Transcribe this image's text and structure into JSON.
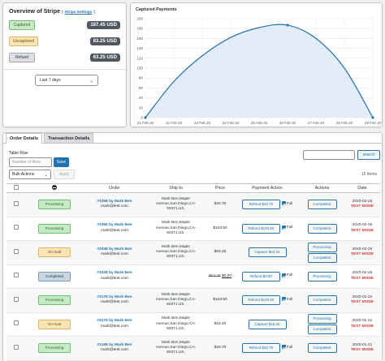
{
  "overview": {
    "title": "Overview of Stripe",
    "sep_left": "|",
    "settings_link": "Stripe Settings",
    "sep_right": "|",
    "rows": [
      {
        "label": "Captured",
        "amount": "187.45 USD"
      },
      {
        "label": "Uncaptured",
        "amount": "83.25 USD"
      },
      {
        "label": "Refund",
        "amount": "63.25 USD"
      }
    ],
    "period": "Last 7 days"
  },
  "chart": {
    "title": "Captured Payments"
  },
  "chart_data": {
    "type": "area",
    "title": "Captured Payments",
    "categories": [
      "21 Feb 20",
      "22 Feb 20",
      "23 Feb 20",
      "24 Feb 20",
      "25 Feb 20",
      "26 Feb 20",
      "27 Feb 20",
      "28 Feb 20",
      "29 Feb 20"
    ],
    "series": [
      {
        "values": [
          0,
          73,
          125,
          162,
          182,
          187,
          160,
          100,
          0
        ]
      }
    ],
    "ylim": [
      0,
      200
    ],
    "yticks": [
      0,
      20,
      40,
      60,
      80,
      100,
      120,
      140,
      160,
      180,
      200
    ],
    "grid": true,
    "colors": {
      "line": "#2271b1",
      "fill": "#dbe9f5"
    }
  },
  "tabs": [
    "Order Details",
    "Transaction Details"
  ],
  "toolbar": {
    "table_row_label": "Table Row",
    "row_placeholder": "Number of Row",
    "save": "Save",
    "bulk": "Bulk Actions",
    "apply": "Apply",
    "search": "search",
    "items": "15 Items"
  },
  "table": {
    "headers": [
      "",
      "",
      "Order",
      "Ship to",
      "Price",
      "Payment Action",
      "Actions",
      "Date"
    ],
    "rows": [
      {
        "status": "Processing",
        "status_class": "processing",
        "order": "#3358",
        "by": "by Mark Ben",
        "email": "mark@test.com",
        "ship1": "Mark Ben,Maple",
        "ship2": "Avenue,San Diego,CA-",
        "ship3": "90371,US,",
        "price": "$20.70",
        "price_old": "",
        "pay": "Refund $20.70",
        "full": "Full",
        "actions": [
          "Completed"
        ],
        "date": "2020-02-26",
        "mode": "TEST MODE"
      },
      {
        "status": "Processing",
        "status_class": "processing",
        "order": "#3355",
        "by": "by Mark Ben",
        "email": "mark@test.com",
        "ship1": "Mark Ben,Maple",
        "ship2": "Avenue,San Diego,CA-",
        "ship3": "90371,US,",
        "price": "$103.50",
        "price_old": "",
        "pay": "Refund $103.50",
        "full": "Full",
        "actions": [
          "Completed"
        ],
        "date": "2020-02-26",
        "mode": "TEST MODE"
      },
      {
        "status": "On-hold",
        "status_class": "hold",
        "order": "#3348",
        "by": "by Mark Ben",
        "email": "mark@test.com",
        "ship1": "Mark Ben,Maple",
        "ship2": "Avenue,San Diego,CA-",
        "ship3": "90371,US,",
        "price": "$63.25",
        "price_old": "",
        "pay": "Capture $63.25",
        "full": "",
        "actions": [
          "Processing",
          "Completed"
        ],
        "date": "2020-02-26",
        "mode": "TEST MODE"
      },
      {
        "status": "Completed",
        "status_class": "completed",
        "order": "#3338",
        "by": "by Mark Ben",
        "email": "mark@test.com",
        "ship1": "",
        "ship2": "",
        "ship3": "",
        "price": "$0.00",
        "price_old": "$63.25",
        "pay": "Refund $0.00",
        "full": "Full",
        "actions": [
          "Processing"
        ],
        "date": "2020-02-26",
        "mode": "TEST MODE"
      },
      {
        "status": "Processing",
        "status_class": "processing",
        "order": "#3178",
        "by": "by Mark Ben",
        "email": "mark@test.com",
        "ship1": "Mark Ben,Maple",
        "ship2": "Avenue,San Diego,CA-",
        "ship3": "90371,US,",
        "price": "$103.50",
        "price_old": "",
        "pay": "Refund $103.50",
        "full": "Full",
        "actions": [
          "Completed"
        ],
        "date": "2020-01-22",
        "mode": "TEST MODE"
      },
      {
        "status": "On-hold",
        "status_class": "hold",
        "order": "#3175",
        "by": "by Mark Ben",
        "email": "mark@test.com",
        "ship1": "Mark Ben,Maple",
        "ship2": "Avenue,San Diego,CA-",
        "ship3": "90371,US,",
        "price": "$18.40",
        "price_old": "",
        "pay": "Capture $18.40",
        "full": "",
        "actions": [
          "Processing",
          "Completed"
        ],
        "date": "2020-01-22",
        "mode": "TEST MODE"
      },
      {
        "status": "Processing",
        "status_class": "processing",
        "order": "#3168",
        "by": "by Mark Ben",
        "email": "mark@test.com",
        "ship1": "Mark Ben,Maple",
        "ship2": "Avenue,San Diego,CA-",
        "ship3": "90371,US,",
        "price": "$20.70",
        "price_old": "",
        "pay": "Refund $20.70",
        "full": "Full",
        "actions": [
          "Completed"
        ],
        "date": "2020-01-21",
        "mode": "TEST MODE"
      }
    ]
  }
}
